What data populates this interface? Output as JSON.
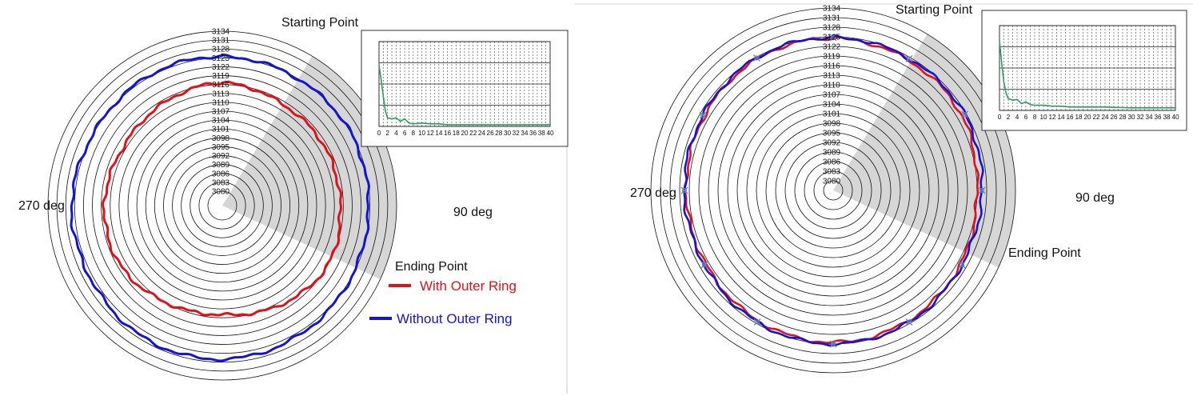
{
  "chart_data": [
    {
      "type": "polar-line",
      "panel": "left",
      "radial_ticks": [
        3080,
        3083,
        3086,
        3089,
        3092,
        3095,
        3098,
        3101,
        3104,
        3107,
        3110,
        3113,
        3116,
        3119,
        3122,
        3125,
        3128,
        3131,
        3134
      ],
      "rlim": [
        3080,
        3134
      ],
      "grid": true,
      "angle_labels": {
        "left": "270 deg",
        "right": "90 deg"
      },
      "annotations": {
        "start": "Starting Point",
        "end": "Ending Point"
      },
      "shaded_sector_deg": [
        31,
        115
      ],
      "series": [
        {
          "name": "With Outer Ring",
          "color": "#e3101a",
          "theta_deg": [
            0,
            30,
            60,
            90,
            120,
            150,
            180,
            210,
            240,
            270,
            300,
            330
          ],
          "r": [
            3116.5,
            3115,
            3115,
            3115,
            3116,
            3114,
            3112,
            3113,
            3115,
            3115,
            3114,
            3115
          ]
        },
        {
          "name": "Without Outer Ring",
          "color": "#1414d6",
          "theta_deg": [
            0,
            30,
            60,
            90,
            120,
            150,
            180,
            210,
            240,
            270,
            300,
            330
          ],
          "r": [
            3125.5,
            3125,
            3125,
            3124.5,
            3125,
            3126,
            3127,
            3127,
            3126,
            3126,
            3125,
            3125.5
          ]
        }
      ]
    },
    {
      "type": "line",
      "panel": "left-inset",
      "x_ticks": [
        "0",
        "2",
        "4",
        "6",
        "8",
        "10",
        "12",
        "14",
        "16",
        "18",
        "20",
        "22",
        "24",
        "26",
        "28",
        "30",
        "32",
        "34",
        "36",
        "38",
        "40"
      ],
      "xlim": [
        0,
        40
      ],
      "grid": true,
      "series": [
        {
          "color": "#2e9e5e",
          "x": [
            0,
            0.5,
            1,
            1.5,
            2,
            3,
            4,
            5,
            6,
            7,
            8,
            10,
            12,
            14,
            16,
            20,
            24,
            30,
            36,
            40
          ],
          "y": [
            0.72,
            0.55,
            0.35,
            0.18,
            0.1,
            0.09,
            0.1,
            0.06,
            0.09,
            0.04,
            0.03,
            0.04,
            0.03,
            0.03,
            0.02,
            0.02,
            0.02,
            0.02,
            0.02,
            0.02
          ]
        }
      ]
    },
    {
      "type": "polar-line",
      "panel": "right",
      "radial_ticks": [
        3080,
        3083,
        3086,
        3089,
        3092,
        3095,
        3098,
        3101,
        3104,
        3107,
        3110,
        3113,
        3116,
        3119,
        3122,
        3125,
        3128,
        3131,
        3134
      ],
      "rlim": [
        3080,
        3134
      ],
      "grid": true,
      "angle_labels": {
        "left": "270 deg",
        "right": "90 deg"
      },
      "annotations": {
        "start": "Starting Point",
        "end": "Ending Point"
      },
      "shaded_sector_deg": [
        31,
        115
      ],
      "series": [
        {
          "name": "",
          "color": "#e3101a",
          "theta_deg": [
            0,
            30,
            60,
            90,
            120,
            150,
            180,
            210,
            240,
            270,
            300,
            330
          ],
          "r": [
            3124.5,
            3124,
            3123.5,
            3122,
            3123,
            3124,
            3124.5,
            3124,
            3123,
            3123,
            3123.5,
            3124.5
          ]
        },
        {
          "name": "",
          "color": "#1414d6",
          "theta_deg": [
            0,
            30,
            60,
            90,
            120,
            150,
            180,
            210,
            240,
            270,
            300,
            330
          ],
          "r": [
            3124.8,
            3124.5,
            3124.5,
            3123.5,
            3123.5,
            3124.5,
            3125,
            3124.5,
            3123.5,
            3123.5,
            3124,
            3124.8
          ]
        }
      ]
    },
    {
      "type": "line",
      "panel": "right-inset",
      "x_ticks": [
        "0",
        "2",
        "4",
        "6",
        "8",
        "10",
        "12",
        "14",
        "16",
        "18",
        "20",
        "22",
        "24",
        "26",
        "28",
        "30",
        "32",
        "34",
        "36",
        "38",
        "40"
      ],
      "xlim": [
        0,
        40
      ],
      "grid": true,
      "series": [
        {
          "color": "#2e9e5e",
          "x": [
            0,
            0.5,
            1,
            1.5,
            2,
            3,
            4,
            5,
            6,
            7,
            8,
            10,
            12,
            14,
            16,
            20,
            24,
            30,
            36,
            40
          ],
          "y": [
            0.82,
            0.55,
            0.33,
            0.2,
            0.14,
            0.12,
            0.13,
            0.08,
            0.1,
            0.07,
            0.06,
            0.06,
            0.05,
            0.05,
            0.04,
            0.04,
            0.04,
            0.03,
            0.03,
            0.03
          ]
        }
      ]
    }
  ]
}
